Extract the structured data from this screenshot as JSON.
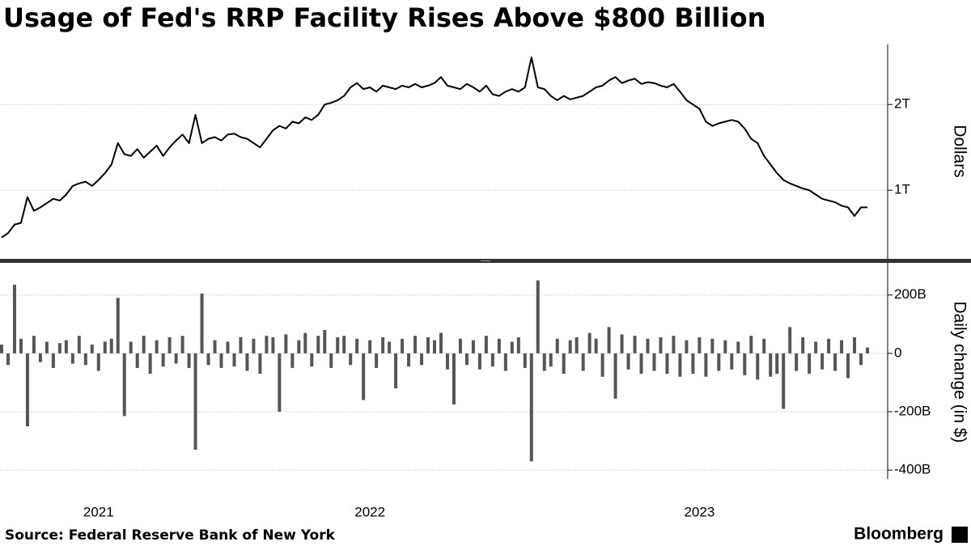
{
  "chart_data": [
    {
      "type": "line",
      "title": "Usage of Fed's RRP Facility Rises Above $800 Billion",
      "y_label": "Dollars",
      "color": "#000000",
      "values": [
        0.45,
        0.5,
        0.6,
        0.62,
        0.92,
        0.76,
        0.8,
        0.85,
        0.9,
        0.88,
        0.95,
        1.05,
        1.08,
        1.1,
        1.05,
        1.12,
        1.2,
        1.3,
        1.55,
        1.42,
        1.4,
        1.48,
        1.38,
        1.45,
        1.52,
        1.4,
        1.5,
        1.58,
        1.65,
        1.55,
        1.88,
        1.55,
        1.6,
        1.62,
        1.58,
        1.65,
        1.66,
        1.62,
        1.6,
        1.55,
        1.5,
        1.6,
        1.7,
        1.75,
        1.72,
        1.8,
        1.78,
        1.85,
        1.82,
        1.88,
        2.0,
        2.02,
        2.05,
        2.1,
        2.2,
        2.25,
        2.18,
        2.2,
        2.15,
        2.22,
        2.2,
        2.18,
        2.22,
        2.2,
        2.24,
        2.2,
        2.22,
        2.25,
        2.32,
        2.22,
        2.2,
        2.18,
        2.24,
        2.2,
        2.15,
        2.22,
        2.12,
        2.1,
        2.15,
        2.18,
        2.15,
        2.2,
        2.55,
        2.2,
        2.18,
        2.1,
        2.05,
        2.1,
        2.06,
        2.08,
        2.1,
        2.15,
        2.2,
        2.22,
        2.28,
        2.32,
        2.25,
        2.28,
        2.3,
        2.24,
        2.26,
        2.25,
        2.22,
        2.2,
        2.24,
        2.15,
        2.05,
        2.0,
        1.95,
        1.8,
        1.75,
        1.78,
        1.8,
        1.82,
        1.8,
        1.72,
        1.6,
        1.55,
        1.4,
        1.3,
        1.2,
        1.12,
        1.08,
        1.05,
        1.02,
        1.0,
        0.95,
        0.9,
        0.88,
        0.86,
        0.82,
        0.8,
        0.7,
        0.8,
        0.8
      ],
      "ylim": [
        0.2,
        2.7
      ],
      "yticks": [
        {
          "value": 1,
          "label": "1T"
        },
        {
          "value": 2,
          "label": "2T"
        }
      ],
      "grid": true
    },
    {
      "type": "bar",
      "y_label": "Daily change (in $)",
      "color": "#555555",
      "categories": [
        null,
        null,
        null,
        null,
        null,
        null,
        null,
        null,
        null,
        null,
        null,
        null,
        null,
        null,
        null,
        "2021",
        null,
        null,
        null,
        null,
        null,
        null,
        null,
        null,
        null,
        null,
        null,
        null,
        null,
        null,
        null,
        null,
        null,
        null,
        null,
        null,
        null,
        null,
        null,
        null,
        null,
        null,
        null,
        null,
        null,
        null,
        null,
        null,
        null,
        null,
        null,
        null,
        null,
        null,
        null,
        null,
        null,
        "2022",
        null,
        null,
        null,
        null,
        null,
        null,
        null,
        null,
        null,
        null,
        null,
        null,
        null,
        null,
        null,
        null,
        null,
        null,
        null,
        null,
        null,
        null,
        null,
        null,
        null,
        null,
        null,
        null,
        null,
        null,
        null,
        null,
        null,
        null,
        null,
        null,
        null,
        null,
        null,
        null,
        null,
        null,
        null,
        null,
        null,
        null,
        null,
        null,
        null,
        null,
        "2023",
        null,
        null,
        null,
        null,
        null,
        null,
        null,
        null,
        null,
        null,
        null,
        null,
        null,
        null,
        null,
        null,
        null,
        null,
        null,
        null,
        null,
        null,
        null,
        null,
        null,
        null
      ],
      "values": [
        30,
        -40,
        235,
        50,
        -250,
        60,
        -30,
        40,
        -50,
        35,
        45,
        -35,
        60,
        -40,
        30,
        -60,
        40,
        50,
        190,
        -215,
        40,
        -50,
        60,
        -70,
        45,
        -45,
        55,
        -35,
        60,
        -50,
        -330,
        205,
        -40,
        45,
        -50,
        40,
        -45,
        55,
        -60,
        50,
        -70,
        60,
        55,
        -200,
        65,
        -50,
        45,
        70,
        -45,
        60,
        80,
        -50,
        55,
        60,
        -40,
        50,
        -160,
        45,
        -50,
        55,
        40,
        -120,
        50,
        -45,
        60,
        -40,
        55,
        45,
        70,
        -55,
        -175,
        50,
        -40,
        45,
        -55,
        60,
        -45,
        50,
        -60,
        40,
        55,
        -50,
        -370,
        250,
        -60,
        -45,
        50,
        -70,
        45,
        55,
        -60,
        70,
        50,
        -80,
        90,
        -155,
        65,
        -55,
        60,
        -70,
        50,
        -60,
        55,
        -70,
        60,
        -80,
        45,
        -70,
        55,
        -80,
        50,
        -60,
        45,
        -55,
        40,
        -75,
        60,
        -90,
        50,
        -80,
        -70,
        -190,
        90,
        -60,
        55,
        -70,
        40,
        -55,
        50,
        -60,
        45,
        -85,
        55,
        -40,
        20
      ],
      "ylim": [
        -430,
        310
      ],
      "yticks": [
        {
          "value": 200,
          "label": "200B"
        },
        0,
        {
          "value": -200,
          "label": "-200B"
        },
        {
          "value": -400,
          "label": "-400B"
        }
      ],
      "grid": true
    }
  ],
  "source": "Source: Federal Reserve Bank of New York",
  "brand": "Bloomberg"
}
